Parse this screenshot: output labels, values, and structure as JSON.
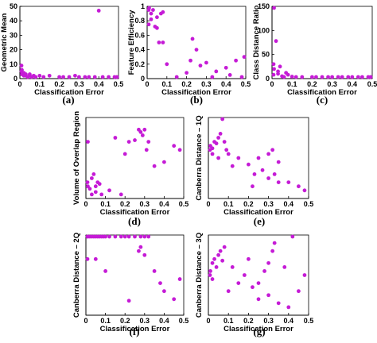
{
  "chart_data": [
    {
      "type": "scatter",
      "panel": "(a)",
      "xlabel": "Classification Error",
      "ylabel": "Geometric Mean",
      "xlim": [
        0,
        0.5
      ],
      "ylim": [
        0,
        50
      ],
      "xticks": [
        "0",
        "0.1",
        "0.2",
        "0.3",
        "0.4",
        "0.5"
      ],
      "yticks": [
        "0",
        "10",
        "20",
        "30",
        "40",
        "50"
      ],
      "xtickvals": [
        0,
        0.1,
        0.2,
        0.3,
        0.4,
        0.5
      ],
      "ytickvals": [
        0,
        10,
        20,
        30,
        40,
        50
      ],
      "x": [
        0.0,
        0.0,
        0.01,
        0.01,
        0.02,
        0.02,
        0.03,
        0.03,
        0.04,
        0.05,
        0.05,
        0.06,
        0.07,
        0.08,
        0.1,
        0.12,
        0.15,
        0.2,
        0.22,
        0.25,
        0.28,
        0.3,
        0.33,
        0.35,
        0.38,
        0.4,
        0.42,
        0.45,
        0.48,
        0.5
      ],
      "y": [
        9,
        5,
        6,
        3,
        4,
        2,
        3,
        2,
        1,
        3,
        2,
        1,
        2,
        1,
        2,
        1,
        2,
        1,
        1,
        1,
        2,
        1,
        1,
        1,
        1,
        47,
        1,
        1,
        1,
        1
      ]
    },
    {
      "type": "scatter",
      "panel": "(b)",
      "xlabel": "Classification Error",
      "ylabel": "Feature Efficiency",
      "xlim": [
        0,
        0.5
      ],
      "ylim": [
        0,
        1
      ],
      "xticks": [
        "0",
        "0.1",
        "0.2",
        "0.3",
        "0.4",
        "0.5"
      ],
      "yticks": [
        "0",
        "0.2",
        "0.4",
        "0.6",
        "0.8",
        "1"
      ],
      "xtickvals": [
        0,
        0.1,
        0.2,
        0.3,
        0.4,
        0.5
      ],
      "ytickvals": [
        0,
        0.2,
        0.4,
        0.6,
        0.8,
        1
      ],
      "x": [
        0.0,
        0.0,
        0.01,
        0.02,
        0.02,
        0.03,
        0.04,
        0.05,
        0.05,
        0.06,
        0.07,
        0.08,
        0.08,
        0.1,
        0.15,
        0.2,
        0.22,
        0.23,
        0.25,
        0.27,
        0.3,
        0.33,
        0.35,
        0.4,
        0.42,
        0.45,
        0.48,
        0.5
      ],
      "y": [
        0.95,
        0.75,
        1.0,
        0.9,
        0.82,
        0.95,
        0.72,
        0.85,
        0.7,
        0.5,
        0.9,
        0.5,
        0.92,
        0.2,
        0.02,
        0.08,
        0.25,
        0.55,
        0.4,
        0.18,
        0.22,
        0.02,
        0.1,
        0.15,
        0.05,
        0.25,
        0.02,
        0.3
      ]
    },
    {
      "type": "scatter",
      "panel": "(c)",
      "xlabel": "Classification Error",
      "ylabel": "Class Distance Ratio",
      "xlim": [
        0,
        0.5
      ],
      "ylim": [
        0,
        150
      ],
      "xticks": [
        "0",
        "0.1",
        "0.2",
        "0.3",
        "0.4",
        "0.5"
      ],
      "yticks": [
        "0",
        "50",
        "100",
        "150"
      ],
      "xtickvals": [
        0,
        0.1,
        0.2,
        0.3,
        0.4,
        0.5
      ],
      "ytickvals": [
        0,
        50,
        100,
        150
      ],
      "x": [
        0.0,
        0.0,
        0.01,
        0.01,
        0.02,
        0.03,
        0.03,
        0.04,
        0.05,
        0.06,
        0.07,
        0.08,
        0.1,
        0.12,
        0.15,
        0.2,
        0.22,
        0.25,
        0.28,
        0.3,
        0.33,
        0.35,
        0.38,
        0.4,
        0.43,
        0.45,
        0.48,
        0.5
      ],
      "y": [
        8,
        30,
        155,
        20,
        78,
        10,
        15,
        25,
        5,
        3,
        12,
        8,
        4,
        2,
        3,
        1,
        2,
        1,
        2,
        1,
        1,
        2,
        1,
        1,
        2,
        1,
        1,
        1
      ]
    },
    {
      "type": "scatter",
      "panel": "(d)",
      "xlabel": "Classification Error",
      "ylabel": "Volume of Overlap Region",
      "xlim": [
        0,
        0.5
      ],
      "ylim": [
        0,
        1
      ],
      "xticks": [
        "0",
        "0.1",
        "0.2",
        "0.3",
        "0.4",
        "0.5"
      ],
      "yticks": [],
      "xtickvals": [
        0,
        0.1,
        0.2,
        0.3,
        0.4,
        0.5
      ],
      "ytickvals": [],
      "x": [
        0.0,
        0.01,
        0.01,
        0.02,
        0.03,
        0.03,
        0.04,
        0.05,
        0.05,
        0.06,
        0.07,
        0.08,
        0.12,
        0.15,
        0.18,
        0.2,
        0.22,
        0.25,
        0.27,
        0.28,
        0.29,
        0.3,
        0.31,
        0.32,
        0.35,
        0.4,
        0.45,
        0.48
      ],
      "y": [
        0.2,
        0.15,
        0.7,
        0.12,
        0.25,
        0.05,
        0.3,
        0.15,
        0.08,
        0.2,
        0.18,
        0.05,
        0.1,
        0.75,
        0.05,
        0.55,
        0.7,
        0.72,
        0.85,
        0.82,
        0.78,
        0.85,
        0.6,
        0.7,
        0.4,
        0.45,
        0.65,
        0.6
      ]
    },
    {
      "type": "scatter",
      "panel": "(e)",
      "xlabel": "Classification Error",
      "ylabel": "Canberra Distance – 1Q",
      "xlim": [
        0,
        0.5
      ],
      "ylim": [
        0,
        1
      ],
      "xticks": [
        "0",
        "0.1",
        "0.2",
        "0.3",
        "0.4",
        "0.5"
      ],
      "yticks": [],
      "xtickvals": [
        0,
        0.1,
        0.2,
        0.3,
        0.4,
        0.5
      ],
      "ytickvals": [],
      "x": [
        0.0,
        0.01,
        0.02,
        0.02,
        0.03,
        0.04,
        0.05,
        0.05,
        0.06,
        0.07,
        0.08,
        0.09,
        0.1,
        0.12,
        0.15,
        0.2,
        0.22,
        0.23,
        0.25,
        0.27,
        0.3,
        0.32,
        0.33,
        0.35,
        0.4,
        0.45,
        0.48,
        0.35,
        0.3
      ],
      "y": [
        0.6,
        0.65,
        0.55,
        0.62,
        0.7,
        0.68,
        0.5,
        0.75,
        0.8,
        1.0,
        0.7,
        0.6,
        0.55,
        0.4,
        0.5,
        0.42,
        0.15,
        0.3,
        0.5,
        0.35,
        0.25,
        0.6,
        0.3,
        0.2,
        0.2,
        0.15,
        0.1,
        0.45,
        0.55
      ]
    },
    {
      "type": "scatter",
      "panel": "(f)",
      "xlabel": "Classification Error",
      "ylabel": "Canberra Distance – 2Q",
      "xlim": [
        0,
        0.5
      ],
      "ylim": [
        0,
        1
      ],
      "xticks": [
        "0",
        "0.1",
        "0.2",
        "0.3",
        "0.4",
        "0.5"
      ],
      "yticks": [],
      "xtickvals": [
        0,
        0.1,
        0.2,
        0.3,
        0.4,
        0.5
      ],
      "ytickvals": [],
      "x": [
        0.0,
        0.01,
        0.02,
        0.03,
        0.04,
        0.05,
        0.06,
        0.07,
        0.08,
        0.09,
        0.1,
        0.12,
        0.15,
        0.18,
        0.2,
        0.22,
        0.25,
        0.28,
        0.3,
        0.32,
        0.27,
        0.0,
        0.05,
        0.1,
        0.28,
        0.3,
        0.35,
        0.4,
        0.45,
        0.48,
        0.22,
        0.38
      ],
      "y": [
        1.0,
        1.0,
        1.0,
        1.0,
        1.0,
        1.0,
        1.0,
        1.0,
        1.0,
        1.0,
        1.0,
        1.0,
        1.0,
        1.0,
        1.0,
        1.0,
        1.0,
        1.0,
        1.0,
        1.0,
        0.8,
        0.7,
        0.7,
        0.55,
        0.85,
        0.75,
        0.55,
        0.3,
        0.2,
        0.45,
        0.18,
        0.4
      ]
    },
    {
      "type": "scatter",
      "panel": "(g)",
      "xlabel": "Classification Error",
      "ylabel": "Canberra Distance – 3Q",
      "xlim": [
        0,
        0.5
      ],
      "ylim": [
        0,
        1
      ],
      "xticks": [
        "0",
        "0.1",
        "0.2",
        "0.3",
        "0.4",
        "0.5"
      ],
      "yticks": [],
      "xtickvals": [
        0,
        0.1,
        0.2,
        0.3,
        0.4,
        0.5
      ],
      "ytickvals": [],
      "x": [
        0.0,
        0.01,
        0.02,
        0.02,
        0.03,
        0.04,
        0.05,
        0.06,
        0.07,
        0.08,
        0.1,
        0.12,
        0.15,
        0.18,
        0.2,
        0.22,
        0.25,
        0.28,
        0.3,
        0.32,
        0.33,
        0.35,
        0.38,
        0.4,
        0.42,
        0.45,
        0.48,
        0.3,
        0.25
      ],
      "y": [
        0.5,
        0.55,
        0.65,
        0.45,
        0.7,
        0.6,
        0.75,
        0.8,
        0.68,
        0.85,
        0.3,
        0.6,
        0.4,
        0.5,
        0.7,
        0.35,
        0.2,
        0.55,
        0.25,
        0.8,
        0.9,
        0.15,
        0.6,
        0.1,
        1.0,
        0.3,
        0.5,
        0.65,
        0.4
      ]
    }
  ]
}
